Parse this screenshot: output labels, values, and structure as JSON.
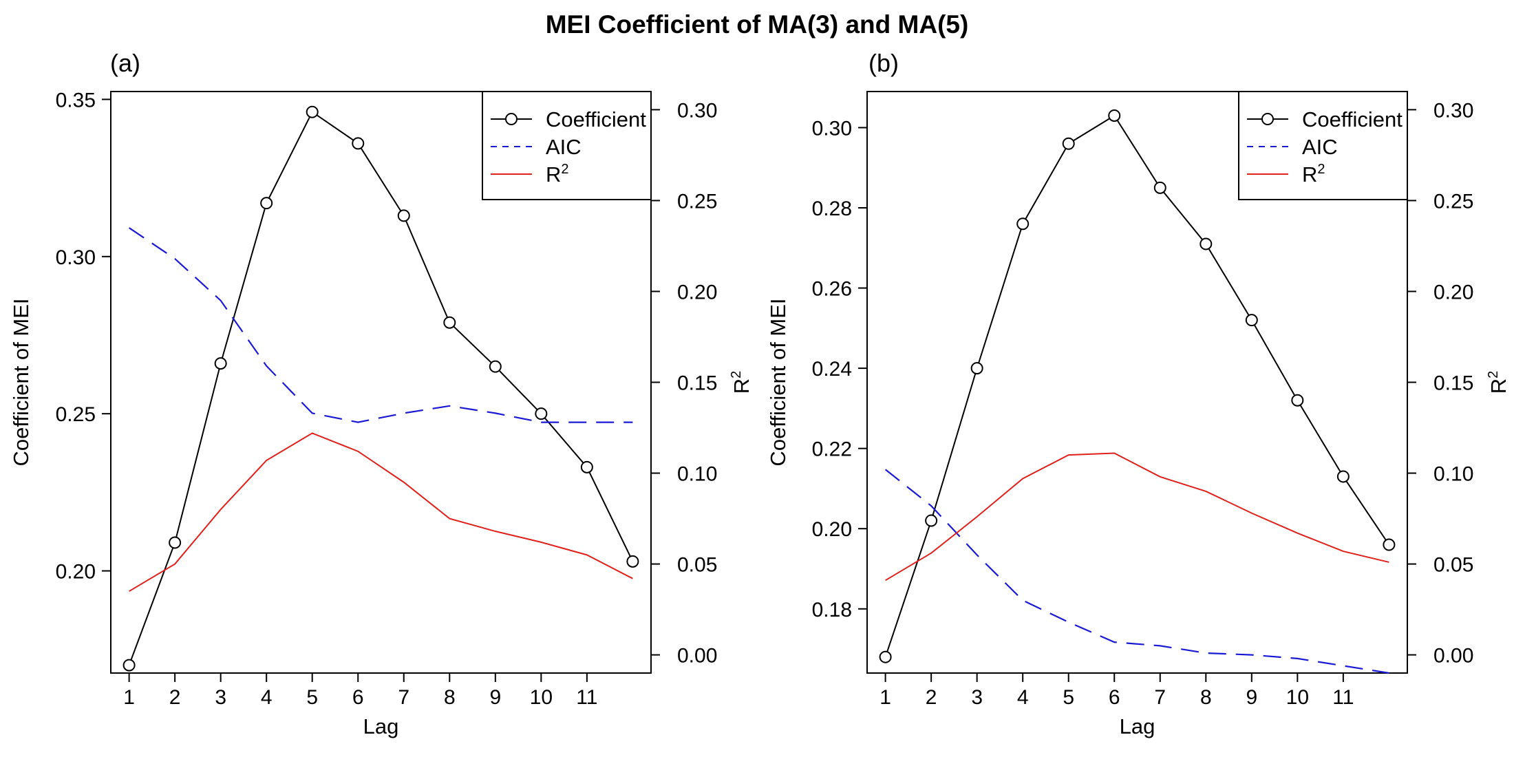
{
  "figure_title": "MEI Coefficient of MA(3) and MA(5)",
  "chart_data": [
    {
      "panel_label": "(a)",
      "type": "line",
      "title": "",
      "xlabel": "Lag",
      "ylabel": "Coefficient of MEI",
      "y2label": "R",
      "y2label_superscript": "2",
      "x": [
        1,
        2,
        3,
        4,
        5,
        6,
        7,
        8,
        9,
        10,
        11,
        12
      ],
      "x_tick_labels": [
        "1",
        "2",
        "3",
        "4",
        "5",
        "6",
        "7",
        "8",
        "9",
        "10",
        "11"
      ],
      "xlim": [
        0.6,
        12.4
      ],
      "ylim": [
        0.1675,
        0.3525
      ],
      "y_ticks": [
        0.2,
        0.25,
        0.3,
        0.35
      ],
      "y_tick_labels": [
        "0.20",
        "0.25",
        "0.30",
        "0.35"
      ],
      "y2lim": [
        -0.01,
        0.31
      ],
      "y2_ticks": [
        0.0,
        0.05,
        0.1,
        0.15,
        0.2,
        0.25,
        0.3
      ],
      "y2_tick_labels": [
        "0.00",
        "0.05",
        "0.10",
        "0.15",
        "0.20",
        "0.25",
        "0.30"
      ],
      "series": [
        {
          "name": "Coefficient",
          "axis": "left",
          "style": "line-points",
          "color": "#000000",
          "values": [
            0.17,
            0.209,
            0.266,
            0.317,
            0.346,
            0.336,
            0.313,
            0.279,
            0.265,
            0.25,
            0.233,
            0.203
          ]
        },
        {
          "name": "AIC",
          "axis": "right",
          "style": "dashed",
          "color": "#1a1ad6",
          "values": [
            0.235,
            0.218,
            0.195,
            0.159,
            0.133,
            0.128,
            0.133,
            0.137,
            0.133,
            0.128,
            0.128,
            0.128
          ]
        },
        {
          "name": "R",
          "name_superscript": "2",
          "axis": "right",
          "style": "solid",
          "color": "#e0201b",
          "values": [
            0.035,
            0.05,
            0.08,
            0.107,
            0.122,
            0.112,
            0.095,
            0.075,
            0.068,
            0.062,
            0.055,
            0.042
          ]
        }
      ],
      "legend_position": "top-right"
    },
    {
      "panel_label": "(b)",
      "type": "line",
      "title": "",
      "xlabel": "Lag",
      "ylabel": "Coefficient of MEI",
      "y2label": "R",
      "y2label_superscript": "2",
      "x": [
        1,
        2,
        3,
        4,
        5,
        6,
        7,
        8,
        9,
        10,
        11,
        12
      ],
      "x_tick_labels": [
        "1",
        "2",
        "3",
        "4",
        "5",
        "6",
        "7",
        "8",
        "9",
        "10",
        "11"
      ],
      "xlim": [
        0.6,
        12.4
      ],
      "ylim": [
        0.164,
        0.309
      ],
      "y_ticks": [
        0.18,
        0.2,
        0.22,
        0.24,
        0.26,
        0.28,
        0.3
      ],
      "y_tick_labels": [
        "0.18",
        "0.20",
        "0.22",
        "0.24",
        "0.26",
        "0.28",
        "0.30"
      ],
      "y2lim": [
        -0.01,
        0.31
      ],
      "y2_ticks": [
        0.0,
        0.05,
        0.1,
        0.15,
        0.2,
        0.25,
        0.3
      ],
      "y2_tick_labels": [
        "0.00",
        "0.05",
        "0.10",
        "0.15",
        "0.20",
        "0.25",
        "0.30"
      ],
      "series": [
        {
          "name": "Coefficient",
          "axis": "left",
          "style": "line-points",
          "color": "#000000",
          "values": [
            0.168,
            0.202,
            0.24,
            0.276,
            0.296,
            0.303,
            0.285,
            0.271,
            0.252,
            0.232,
            0.213,
            0.196
          ]
        },
        {
          "name": "AIC",
          "axis": "right",
          "style": "dashed",
          "color": "#1a1ad6",
          "values": [
            0.102,
            0.082,
            0.055,
            0.03,
            0.018,
            0.007,
            0.005,
            0.001,
            0.0,
            -0.002,
            -0.006,
            -0.01
          ]
        },
        {
          "name": "R",
          "name_superscript": "2",
          "axis": "right",
          "style": "solid",
          "color": "#e0201b",
          "values": [
            0.041,
            0.056,
            0.076,
            0.097,
            0.11,
            0.111,
            0.098,
            0.09,
            0.078,
            0.067,
            0.057,
            0.051
          ]
        }
      ],
      "legend_position": "top-right"
    }
  ]
}
